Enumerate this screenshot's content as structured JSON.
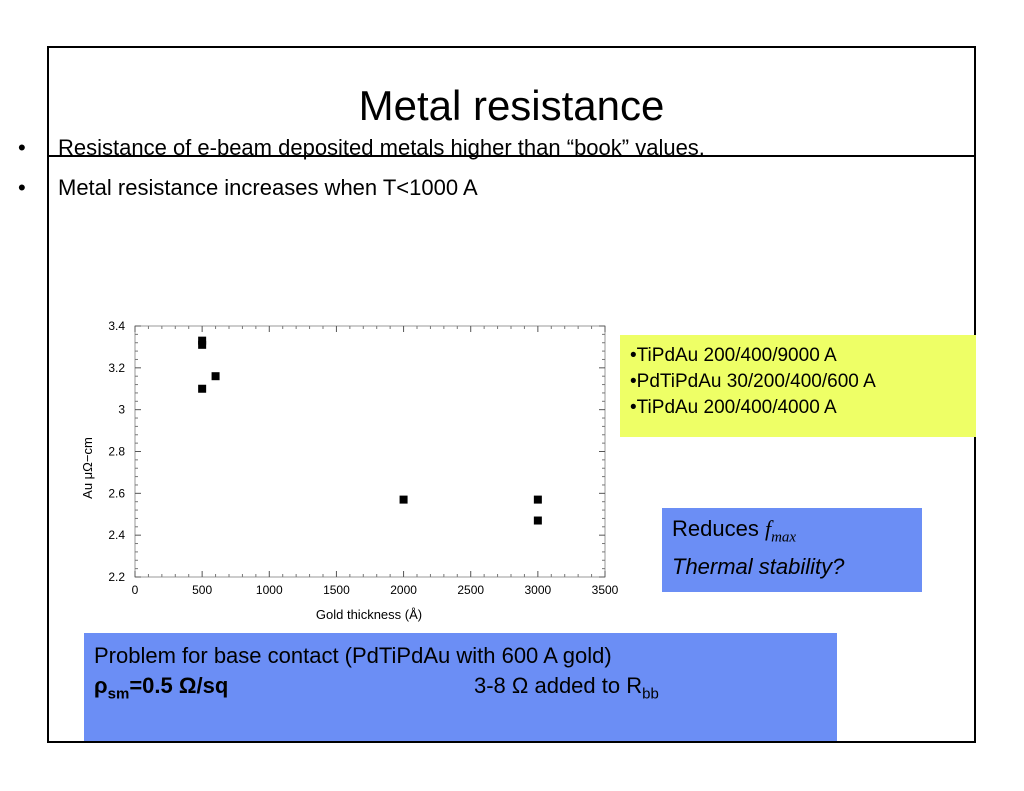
{
  "title": "Metal resistance",
  "bullets": [
    "Resistance of e-beam deposited metals higher than “book” values.",
    "Metal resistance increases when T<1000 A"
  ],
  "bullet_marker": "•",
  "legend_box": {
    "color": "#eeff66",
    "items": [
      "•TiPdAu 200/400/9000 A",
      "•PdTiPdAu 30/200/400/600 A",
      "•TiPdAu 200/400/4000 A"
    ]
  },
  "note_box": {
    "color": "#6b8ef5",
    "reduces": "Reduces",
    "f": "f",
    "f_sub": "max",
    "thermal": "Thermal stability?"
  },
  "problem_box": {
    "color": "#6b8ef5",
    "line1": "Problem for base contact (PdTiPdAu with 600 A gold)",
    "rho": "ρ",
    "rho_sub": "sm",
    "rho_value": "=0.5 Ω/sq",
    "added_prefix": "3-8 Ω added to R",
    "added_sub": "bb"
  },
  "chart_data": {
    "type": "scatter",
    "xlabel": "Gold thickness  (Å)",
    "ylabel": "Au   μΩ−cm",
    "xlim": [
      0,
      3500
    ],
    "ylim": [
      2.2,
      3.4
    ],
    "xticks": [
      "0",
      "500",
      "1000",
      "1500",
      "2000",
      "2500",
      "3000",
      "3500"
    ],
    "yticks": [
      "2.2",
      "2.4",
      "2.6",
      "2.8",
      "3",
      "3.2",
      "3.4"
    ],
    "marker_color": "#000000",
    "points": [
      {
        "x": 500,
        "y": 3.33
      },
      {
        "x": 500,
        "y": 3.31
      },
      {
        "x": 500,
        "y": 3.1
      },
      {
        "x": 600,
        "y": 3.16
      },
      {
        "x": 2000,
        "y": 2.57
      },
      {
        "x": 3000,
        "y": 2.57
      },
      {
        "x": 3000,
        "y": 2.47
      }
    ]
  }
}
